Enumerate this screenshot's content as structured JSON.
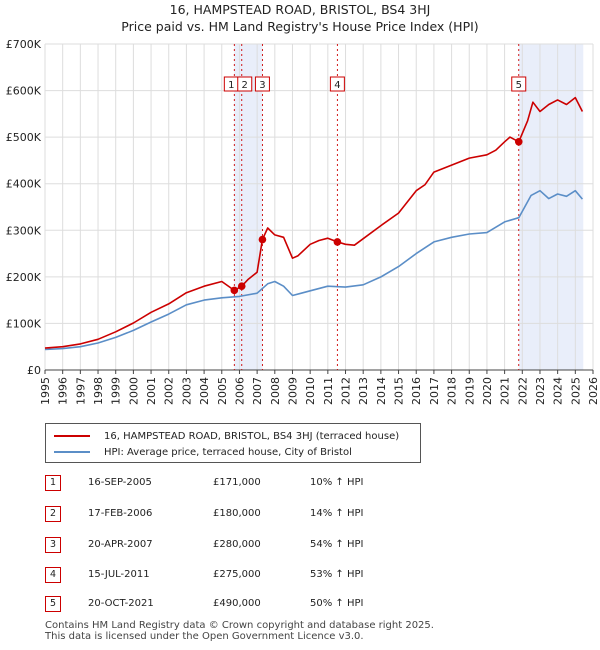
{
  "chart_data": {
    "type": "line",
    "title": "16, HAMPSTEAD ROAD, BRISTOL, BS4 3HJ",
    "subtitle": "Price paid vs. HM Land Registry's House Price Index (HPI)",
    "xlim": [
      1995,
      2026
    ],
    "ylim": [
      0,
      700000
    ],
    "x_ticks": [
      "1995",
      "1996",
      "1997",
      "1998",
      "1999",
      "2000",
      "2001",
      "2002",
      "2003",
      "2004",
      "2005",
      "2006",
      "2007",
      "2008",
      "2009",
      "2010",
      "2011",
      "2012",
      "2013",
      "2014",
      "2015",
      "2016",
      "2017",
      "2018",
      "2019",
      "2020",
      "2021",
      "2022",
      "2023",
      "2024",
      "2025",
      "2026"
    ],
    "y_ticks": [
      {
        "value": 0,
        "label": "£0"
      },
      {
        "value": 100000,
        "label": "£100K"
      },
      {
        "value": 200000,
        "label": "£200K"
      },
      {
        "value": 300000,
        "label": "£300K"
      },
      {
        "value": 400000,
        "label": "£400K"
      },
      {
        "value": 500000,
        "label": "£500K"
      },
      {
        "value": 600000,
        "label": "£600K"
      },
      {
        "value": 700000,
        "label": "£700K"
      }
    ],
    "shaded_spans": [
      [
        2005.71,
        2007.3
      ],
      [
        2021.8,
        2025.45
      ]
    ],
    "series": [
      {
        "name": "16, HAMPSTEAD ROAD, BRISTOL, BS4 3HJ (terraced house)",
        "color": "#cc0000",
        "x": [
          1995.0,
          1996.0,
          1997.0,
          1998.0,
          1999.0,
          2000.0,
          2001.0,
          2002.0,
          2003.0,
          2004.0,
          2005.0,
          2005.71,
          2006.13,
          2006.5,
          2007.0,
          2007.3,
          2007.6,
          2008.0,
          2008.5,
          2009.0,
          2009.3,
          2010.0,
          2010.5,
          2011.0,
          2011.54,
          2012.0,
          2012.5,
          2013.0,
          2014.0,
          2015.0,
          2016.0,
          2016.5,
          2017.0,
          2018.0,
          2019.0,
          2020.0,
          2020.5,
          2021.0,
          2021.3,
          2021.8,
          2022.3,
          2022.6,
          2023.0,
          2023.5,
          2024.0,
          2024.5,
          2025.0,
          2025.4
        ],
        "values": [
          47000,
          50000,
          56000,
          66000,
          82000,
          101000,
          124000,
          142000,
          166000,
          180000,
          190000,
          171000,
          180000,
          195000,
          210000,
          280000,
          305000,
          290000,
          285000,
          240000,
          245000,
          270000,
          278000,
          283000,
          275000,
          270000,
          268000,
          282000,
          310000,
          337000,
          385000,
          398000,
          425000,
          440000,
          455000,
          462000,
          472000,
          490000,
          500000,
          490000,
          535000,
          575000,
          555000,
          570000,
          580000,
          570000,
          585000,
          555000
        ]
      },
      {
        "name": "HPI: Average price, terraced house, City of Bristol",
        "color": "#5b8ec7",
        "x": [
          1995.0,
          1996.0,
          1997.0,
          1998.0,
          1999.0,
          2000.0,
          2001.0,
          2002.0,
          2003.0,
          2004.0,
          2005.0,
          2006.0,
          2007.0,
          2007.6,
          2008.0,
          2008.5,
          2009.0,
          2009.5,
          2010.0,
          2011.0,
          2012.0,
          2013.0,
          2014.0,
          2015.0,
          2016.0,
          2017.0,
          2018.0,
          2019.0,
          2020.0,
          2021.0,
          2021.8,
          2022.5,
          2023.0,
          2023.5,
          2024.0,
          2024.5,
          2025.0,
          2025.4
        ],
        "values": [
          44000,
          46000,
          50000,
          58000,
          70000,
          85000,
          103000,
          120000,
          140000,
          150000,
          155000,
          158000,
          165000,
          185000,
          190000,
          180000,
          160000,
          165000,
          170000,
          180000,
          178000,
          183000,
          200000,
          222000,
          250000,
          275000,
          285000,
          292000,
          295000,
          318000,
          327000,
          375000,
          385000,
          368000,
          378000,
          373000,
          385000,
          367000
        ]
      }
    ],
    "sales": [
      {
        "n": "1",
        "x": 2005.71,
        "value": 171000
      },
      {
        "n": "2",
        "x": 2006.13,
        "value": 180000
      },
      {
        "n": "3",
        "x": 2007.3,
        "value": 280000
      },
      {
        "n": "4",
        "x": 2011.54,
        "value": 275000
      },
      {
        "n": "5",
        "x": 2021.8,
        "value": 490000
      }
    ]
  },
  "legend": {
    "property_label": "16, HAMPSTEAD ROAD, BRISTOL, BS4 3HJ (terraced house)",
    "hpi_label": "HPI: Average price, terraced house, City of Bristol"
  },
  "table": [
    {
      "n": "1",
      "date": "16-SEP-2005",
      "price": "£171,000",
      "hpi": "10% ↑ HPI"
    },
    {
      "n": "2",
      "date": "17-FEB-2006",
      "price": "£180,000",
      "hpi": "14% ↑ HPI"
    },
    {
      "n": "3",
      "date": "20-APR-2007",
      "price": "£280,000",
      "hpi": "54% ↑ HPI"
    },
    {
      "n": "4",
      "date": "15-JUL-2011",
      "price": "£275,000",
      "hpi": "53% ↑ HPI"
    },
    {
      "n": "5",
      "date": "20-OCT-2021",
      "price": "£490,000",
      "hpi": "50% ↑ HPI"
    }
  ],
  "footer": {
    "line1": "Contains HM Land Registry data © Crown copyright and database right 2025.",
    "line2": "This data is licensed under the Open Government Licence v3.0."
  }
}
